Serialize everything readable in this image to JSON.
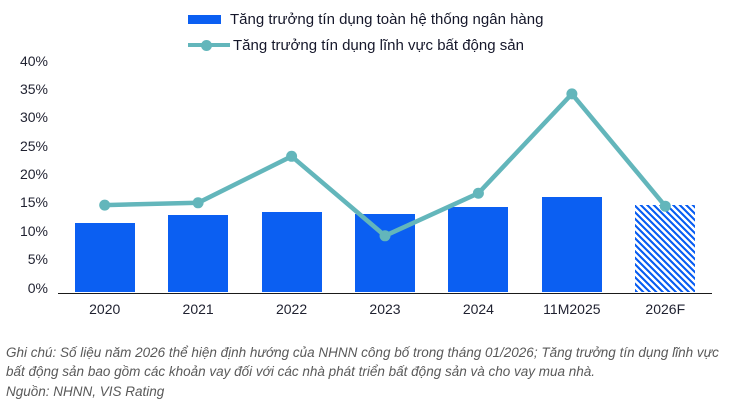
{
  "legend": {
    "items": [
      {
        "label": "Tăng trưởng tín dụng toàn hệ thống ngân hàng",
        "swatch": "bar",
        "color": "#0b5ff2"
      },
      {
        "label": "Tăng trưởng tín dụng lĩnh vực bất động sản",
        "swatch": "line-marker",
        "color": "#63b6bb"
      }
    ]
  },
  "chart_data": {
    "type": "bar+line",
    "categories": [
      "2020",
      "2021",
      "2022",
      "2023",
      "2024",
      "11M2025",
      "2026F"
    ],
    "series": [
      {
        "name": "Tăng trưởng tín dụng toàn hệ thống ngân hàng",
        "type": "bar",
        "color": "#0b5ff2",
        "values": [
          12.2,
          13.6,
          14.2,
          13.8,
          15.1,
          16.8,
          15.5
        ],
        "hatched_categories": [
          "2026F"
        ]
      },
      {
        "name": "Tăng trưởng tín dụng lĩnh vực bất động sản",
        "type": "line",
        "color": "#63b6bb",
        "values": [
          15.4,
          15.8,
          24.0,
          10.0,
          17.5,
          35.0,
          15.2
        ]
      }
    ],
    "xlabel": "",
    "ylabel": "",
    "ylim": [
      0,
      40
    ],
    "ytick_step": 5,
    "ytick_labels": [
      "0%",
      "5%",
      "10%",
      "15%",
      "20%",
      "25%",
      "30%",
      "35%",
      "40%"
    ],
    "grid": false,
    "legend_position": "top-center"
  },
  "footnote": {
    "note": "Ghi chú: Số liệu năm 2026 thể hiện định hướng của NHNN công bố trong tháng 01/2026; Tăng trưởng tín dụng lĩnh vực bất động sản bao gồm các khoản vay đối với các nhà phát triển bất động sản và cho vay mua nhà.",
    "source": "Nguồn: NHNN, VIS Rating"
  },
  "colors": {
    "bar_blue": "#0b5ff2",
    "line_teal": "#63b6bb",
    "axis_text": "#1f2130",
    "note_gray": "#595959"
  }
}
